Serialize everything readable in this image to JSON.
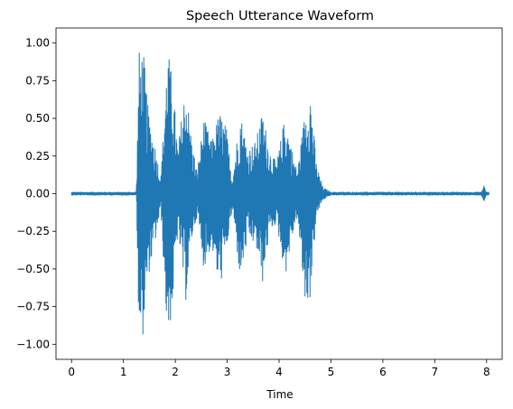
{
  "chart_data": {
    "type": "line",
    "title": "Speech Utterance Waveform",
    "xlabel": "Time",
    "ylabel": "",
    "xlim": [
      -0.3,
      8.3
    ],
    "ylim": [
      -1.1,
      1.1
    ],
    "x_ticks": [
      0,
      1,
      2,
      3,
      4,
      5,
      6,
      7,
      8
    ],
    "x_tick_labels": [
      "0",
      "1",
      "2",
      "3",
      "4",
      "5",
      "6",
      "7",
      "8"
    ],
    "y_ticks": [
      1.0,
      0.75,
      0.5,
      0.25,
      0.0,
      -0.25,
      -0.5,
      -0.75,
      -1.0
    ],
    "y_tick_labels": [
      "1.00",
      "0.75",
      "0.50",
      "0.25",
      "0.00",
      "−0.25",
      "−0.50",
      "−0.75",
      "−1.00"
    ],
    "grid": false,
    "line_color": "#1f77b4",
    "series": [
      {
        "name": "",
        "x_start": 0.0,
        "x_end": 8.05,
        "envelope": [
          {
            "t": 0.0,
            "max": 0.01,
            "min": -0.01
          },
          {
            "t": 1.25,
            "max": 0.01,
            "min": -0.01
          },
          {
            "t": 1.3,
            "max": 0.95,
            "min": -0.98
          },
          {
            "t": 1.38,
            "max": 0.97,
            "min": -0.94
          },
          {
            "t": 1.48,
            "max": 0.55,
            "min": -0.55
          },
          {
            "t": 1.6,
            "max": 0.35,
            "min": -0.35
          },
          {
            "t": 1.72,
            "max": 0.1,
            "min": -0.1
          },
          {
            "t": 1.85,
            "max": 0.98,
            "min": -1.0
          },
          {
            "t": 1.95,
            "max": 0.75,
            "min": -0.75
          },
          {
            "t": 2.05,
            "max": 0.3,
            "min": -0.25
          },
          {
            "t": 2.2,
            "max": 0.75,
            "min": -0.72
          },
          {
            "t": 2.32,
            "max": 0.35,
            "min": -0.3
          },
          {
            "t": 2.42,
            "max": 0.15,
            "min": -0.15
          },
          {
            "t": 2.55,
            "max": 0.5,
            "min": -0.5
          },
          {
            "t": 2.7,
            "max": 0.35,
            "min": -0.35
          },
          {
            "t": 2.85,
            "max": 0.55,
            "min": -0.65
          },
          {
            "t": 2.98,
            "max": 0.45,
            "min": -0.4
          },
          {
            "t": 3.1,
            "max": 0.1,
            "min": -0.1
          },
          {
            "t": 3.25,
            "max": 0.55,
            "min": -0.58
          },
          {
            "t": 3.4,
            "max": 0.3,
            "min": -0.3
          },
          {
            "t": 3.55,
            "max": 0.35,
            "min": -0.35
          },
          {
            "t": 3.68,
            "max": 0.55,
            "min": -0.6
          },
          {
            "t": 3.82,
            "max": 0.3,
            "min": -0.25
          },
          {
            "t": 3.95,
            "max": 0.2,
            "min": -0.2
          },
          {
            "t": 4.12,
            "max": 0.53,
            "min": -0.55
          },
          {
            "t": 4.25,
            "max": 0.3,
            "min": -0.3
          },
          {
            "t": 4.35,
            "max": 0.15,
            "min": -0.15
          },
          {
            "t": 4.5,
            "max": 0.55,
            "min": -0.75
          },
          {
            "t": 4.6,
            "max": 0.72,
            "min": -0.7
          },
          {
            "t": 4.72,
            "max": 0.2,
            "min": -0.15
          },
          {
            "t": 4.85,
            "max": 0.04,
            "min": -0.04
          },
          {
            "t": 5.0,
            "max": 0.01,
            "min": -0.01
          },
          {
            "t": 7.9,
            "max": 0.01,
            "min": -0.01
          },
          {
            "t": 7.95,
            "max": 0.06,
            "min": -0.06
          },
          {
            "t": 8.0,
            "max": 0.01,
            "min": -0.01
          },
          {
            "t": 8.05,
            "max": 0.01,
            "min": -0.01
          }
        ]
      }
    ]
  }
}
